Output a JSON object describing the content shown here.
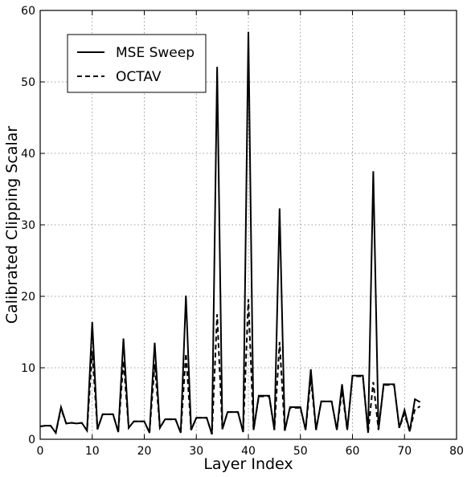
{
  "chart_data": {
    "type": "line",
    "title": "",
    "xlabel": "Layer Index",
    "ylabel": "Calibrated Clipping Scalar",
    "xlim": [
      0,
      80
    ],
    "ylim": [
      0,
      60
    ],
    "x_ticks": [
      0,
      10,
      20,
      30,
      40,
      50,
      60,
      70,
      80
    ],
    "y_ticks": [
      0,
      10,
      20,
      30,
      40,
      50,
      60
    ],
    "grid": true,
    "legend_position": "top-left",
    "series": [
      {
        "name": "MSE Sweep",
        "style": "solid",
        "color": "#000000",
        "x": [
          0,
          1,
          2,
          3,
          4,
          5,
          6,
          7,
          8,
          9,
          10,
          11,
          12,
          13,
          14,
          15,
          16,
          17,
          18,
          19,
          20,
          21,
          22,
          23,
          24,
          25,
          26,
          27,
          28,
          29,
          30,
          31,
          32,
          33,
          34,
          35,
          36,
          37,
          38,
          39,
          40,
          41,
          42,
          43,
          44,
          45,
          46,
          47,
          48,
          49,
          50,
          51,
          52,
          53,
          54,
          55,
          56,
          57,
          58,
          59,
          60,
          61,
          62,
          63,
          64,
          65,
          66,
          67,
          68,
          69,
          70,
          71,
          72,
          73
        ],
        "values": [
          1.8,
          1.9,
          1.9,
          0.9,
          4.5,
          2.2,
          2.3,
          2.2,
          2.3,
          1.2,
          16.4,
          1.4,
          3.5,
          3.5,
          3.5,
          1.0,
          14.1,
          1.6,
          2.5,
          2.5,
          2.5,
          0.9,
          13.5,
          1.6,
          2.8,
          2.8,
          2.8,
          0.9,
          20.1,
          1.3,
          3.0,
          3.0,
          3.0,
          0.7,
          52.1,
          1.4,
          3.8,
          3.8,
          3.8,
          1.0,
          57.0,
          1.3,
          6.1,
          6.1,
          6.1,
          1.3,
          32.3,
          1.2,
          4.5,
          4.5,
          4.5,
          1.3,
          9.8,
          1.3,
          5.3,
          5.3,
          5.3,
          1.3,
          7.7,
          1.3,
          8.9,
          8.9,
          8.9,
          0.9,
          37.5,
          1.3,
          7.7,
          7.7,
          7.7,
          1.6,
          4.1,
          1.1,
          5.6,
          5.2
        ]
      },
      {
        "name": "OCTAV",
        "style": "dashed",
        "color": "#000000",
        "x": [
          0,
          1,
          2,
          3,
          4,
          5,
          6,
          7,
          8,
          9,
          10,
          11,
          12,
          13,
          14,
          15,
          16,
          17,
          18,
          19,
          20,
          21,
          22,
          23,
          24,
          25,
          26,
          27,
          28,
          29,
          30,
          31,
          32,
          33,
          34,
          35,
          36,
          37,
          38,
          39,
          40,
          41,
          42,
          43,
          44,
          45,
          46,
          47,
          48,
          49,
          50,
          51,
          52,
          53,
          54,
          55,
          56,
          57,
          58,
          59,
          60,
          61,
          62,
          63,
          64,
          65,
          66,
          67,
          68,
          69,
          70,
          71,
          72,
          73
        ],
        "values": [
          1.8,
          1.9,
          1.9,
          0.9,
          4.3,
          2.2,
          2.3,
          2.2,
          2.3,
          1.2,
          12.3,
          1.4,
          3.5,
          3.5,
          3.5,
          1.0,
          11.0,
          1.6,
          2.5,
          2.5,
          2.5,
          0.9,
          10.5,
          1.6,
          2.8,
          2.8,
          2.8,
          0.9,
          12.0,
          1.3,
          3.0,
          3.0,
          3.0,
          0.7,
          17.5,
          1.4,
          3.8,
          3.8,
          3.8,
          1.0,
          19.6,
          1.3,
          6.0,
          6.0,
          6.0,
          1.3,
          13.6,
          1.2,
          4.4,
          4.4,
          4.4,
          1.3,
          8.5,
          1.3,
          5.3,
          5.3,
          5.3,
          1.3,
          6.8,
          1.3,
          8.8,
          8.8,
          8.8,
          0.9,
          8.0,
          1.3,
          7.6,
          7.6,
          7.6,
          1.6,
          3.6,
          1.1,
          4.2,
          4.6
        ]
      }
    ]
  }
}
